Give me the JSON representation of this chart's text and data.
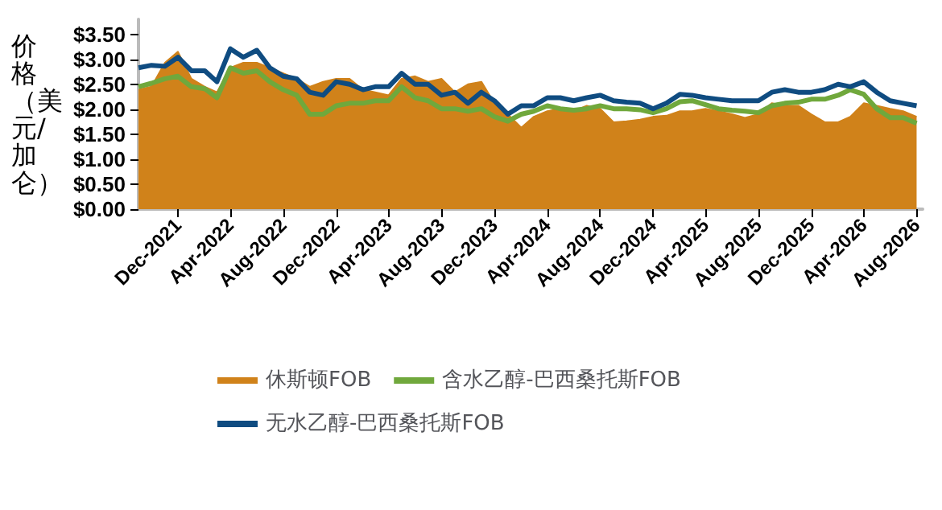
{
  "chart_data": {
    "type": "line",
    "ylabel": "价格（美元/加仑）",
    "x": [
      "2021-09",
      "2021-10",
      "2021-11",
      "2021-12",
      "2022-01",
      "2022-02",
      "2022-03",
      "2022-04",
      "2022-05",
      "2022-06",
      "2022-07",
      "2022-08",
      "2022-09",
      "2022-10",
      "2022-11",
      "2022-12",
      "2023-01",
      "2023-02",
      "2023-03",
      "2023-04",
      "2023-05",
      "2023-06",
      "2023-07",
      "2023-08",
      "2023-09",
      "2023-10",
      "2023-11",
      "2023-12",
      "2024-01",
      "2024-02",
      "2024-03",
      "2024-04",
      "2024-05",
      "2024-06",
      "2024-07",
      "2024-08",
      "2024-09",
      "2024-10",
      "2024-11",
      "2024-12",
      "2025-01",
      "2025-02",
      "2025-03",
      "2025-04",
      "2025-05",
      "2025-06",
      "2025-07",
      "2025-08",
      "2025-09",
      "2025-10",
      "2025-11",
      "2025-12",
      "2026-01",
      "2026-02",
      "2026-03",
      "2026-04",
      "2026-05",
      "2026-06",
      "2026-07",
      "2026-08"
    ],
    "series": [
      {
        "name": "休斯顿FOB",
        "type": "area",
        "color": "#d0821a",
        "values": [
          2.39,
          2.45,
          2.93,
          3.15,
          2.61,
          2.45,
          2.34,
          2.83,
          2.93,
          2.93,
          2.83,
          2.72,
          2.61,
          2.45,
          2.55,
          2.61,
          2.61,
          2.39,
          2.34,
          2.28,
          2.61,
          2.66,
          2.55,
          2.61,
          2.34,
          2.5,
          2.55,
          2.12,
          1.9,
          1.63,
          1.85,
          1.96,
          2.01,
          1.96,
          2.07,
          2.01,
          1.74,
          1.76,
          1.79,
          1.85,
          1.87,
          1.96,
          1.96,
          2.01,
          1.96,
          1.9,
          1.83,
          1.9,
          2.12,
          2.07,
          2.07,
          1.9,
          1.74,
          1.74,
          1.85,
          2.12,
          2.07,
          2.01,
          1.96,
          1.85
        ]
      },
      {
        "name": "含水乙醇-巴西桑托斯FOB",
        "color": "#70a83c",
        "values": [
          2.45,
          2.52,
          2.61,
          2.66,
          2.45,
          2.41,
          2.23,
          2.83,
          2.72,
          2.77,
          2.55,
          2.39,
          2.28,
          1.9,
          1.9,
          2.07,
          2.12,
          2.12,
          2.17,
          2.17,
          2.45,
          2.23,
          2.17,
          2.01,
          2.01,
          1.96,
          2.01,
          1.85,
          1.76,
          1.9,
          1.96,
          2.07,
          2.01,
          1.98,
          2.01,
          2.07,
          2.01,
          2.01,
          1.99,
          1.93,
          2.01,
          2.15,
          2.17,
          2.09,
          2.01,
          1.98,
          1.96,
          1.93,
          2.07,
          2.12,
          2.14,
          2.2,
          2.2,
          2.28,
          2.39,
          2.3,
          2.01,
          1.83,
          1.83,
          1.72
        ]
      },
      {
        "name": "无水乙醇-巴西桑托斯FOB",
        "color": "#0f4c81",
        "values": [
          2.83,
          2.88,
          2.86,
          3.04,
          2.77,
          2.77,
          2.55,
          3.21,
          3.04,
          3.18,
          2.83,
          2.66,
          2.61,
          2.34,
          2.28,
          2.55,
          2.5,
          2.39,
          2.45,
          2.45,
          2.72,
          2.5,
          2.5,
          2.28,
          2.34,
          2.12,
          2.34,
          2.17,
          1.9,
          2.07,
          2.07,
          2.23,
          2.23,
          2.17,
          2.23,
          2.28,
          2.17,
          2.14,
          2.12,
          2.01,
          2.12,
          2.3,
          2.28,
          2.23,
          2.2,
          2.17,
          2.17,
          2.17,
          2.34,
          2.39,
          2.34,
          2.34,
          2.39,
          2.5,
          2.45,
          2.55,
          2.34,
          2.17,
          2.12,
          2.07
        ]
      }
    ],
    "xlim": [
      "2021-09",
      "2026-08-15"
    ],
    "xticks": [
      {
        "value": "2021-12",
        "label": "Dec-2021"
      },
      {
        "value": "2022-04",
        "label": "Apr-2022"
      },
      {
        "value": "2022-08",
        "label": "Aug-2022"
      },
      {
        "value": "2022-12",
        "label": "Dec-2022"
      },
      {
        "value": "2023-04",
        "label": "Apr-2023"
      },
      {
        "value": "2023-08",
        "label": "Aug-2023"
      },
      {
        "value": "2023-12",
        "label": "Dec-2023"
      },
      {
        "value": "2024-04",
        "label": "Apr-2024"
      },
      {
        "value": "2024-08",
        "label": "Aug-2024"
      },
      {
        "value": "2024-12",
        "label": "Dec-2024"
      },
      {
        "value": "2025-04",
        "label": "Apr-2025"
      },
      {
        "value": "2025-08",
        "label": "Aug-2025"
      },
      {
        "value": "2025-12",
        "label": "Dec-2025"
      },
      {
        "value": "2026-04",
        "label": "Apr-2026"
      },
      {
        "value": "2026-08",
        "label": "Aug-2026"
      }
    ],
    "ylim": [
      0,
      3.8
    ],
    "yticks": [
      {
        "value": 0,
        "label": "$0.00"
      },
      {
        "value": 0.5,
        "label": "$0.50"
      },
      {
        "value": 1,
        "label": "$1.00"
      },
      {
        "value": 1.5,
        "label": "$1.50"
      },
      {
        "value": 2,
        "label": "$2.00"
      },
      {
        "value": 2.5,
        "label": "$2.50"
      },
      {
        "value": 3,
        "label": "$3.00"
      },
      {
        "value": 3.5,
        "label": "$3.50"
      }
    ],
    "grid": false,
    "legend": "bottom",
    "marker": "none",
    "line_style": "solid"
  }
}
